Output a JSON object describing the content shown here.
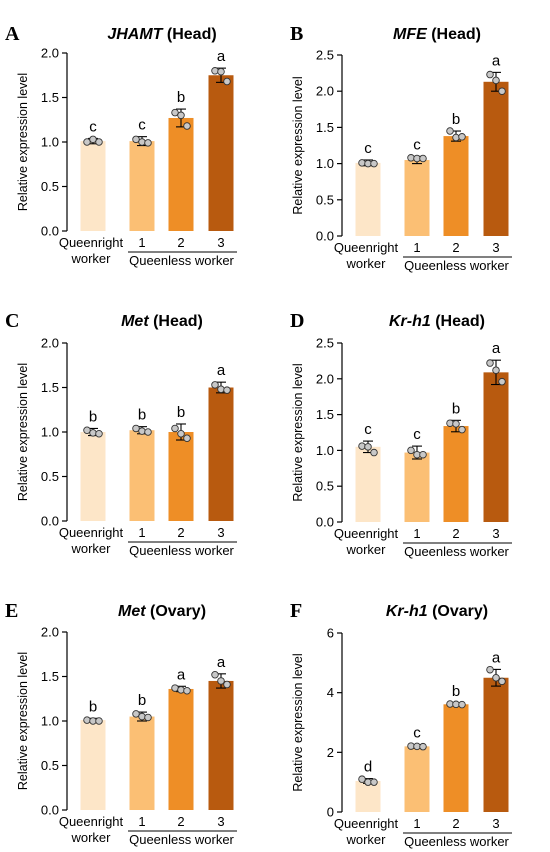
{
  "colors": [
    "#fde6c8",
    "#fbbf74",
    "#ee8e26",
    "#b85a0f"
  ],
  "xlabels": {
    "queenright_line1": "Queenright",
    "queenright_line2": "worker",
    "group_ticks": [
      "1",
      "2",
      "3"
    ],
    "queenless": "Queenless worker"
  },
  "chart_data": [
    {
      "panel": "A",
      "type": "bar",
      "title_gene": "JHAMT",
      "title_tissue": "(Head)",
      "ylabel": "Relative expression level",
      "ylim": [
        0,
        2.0
      ],
      "yticks": [
        "0.0",
        "0.5",
        "1.0",
        "1.5",
        "2.0"
      ],
      "ytick_values": [
        0,
        0.5,
        1.0,
        1.5,
        2.0
      ],
      "values": [
        1.01,
        1.01,
        1.27,
        1.75
      ],
      "errors": [
        0.03,
        0.05,
        0.1,
        0.08
      ],
      "letters": [
        "c",
        "c",
        "b",
        "a"
      ],
      "points": [
        [
          1.0,
          1.03,
          1.0
        ],
        [
          1.03,
          1.0,
          0.99
        ],
        [
          1.33,
          1.3,
          1.18
        ],
        [
          1.8,
          1.79,
          1.68
        ]
      ]
    },
    {
      "panel": "B",
      "type": "bar",
      "title_gene": "MFE",
      "title_tissue": "(Head)",
      "ylabel": "Relative expression level",
      "ylim": [
        0,
        2.5
      ],
      "yticks": [
        "0.0",
        "0.5",
        "1.0",
        "1.5",
        "2.0",
        "2.5"
      ],
      "ytick_values": [
        0,
        0.5,
        1.0,
        1.5,
        2.0,
        2.5
      ],
      "values": [
        1.01,
        1.05,
        1.38,
        2.13
      ],
      "errors": [
        0.04,
        0.05,
        0.07,
        0.13
      ],
      "letters": [
        "c",
        "c",
        "b",
        "a"
      ],
      "points": [
        [
          1.01,
          1.0,
          1.0
        ],
        [
          1.08,
          1.07,
          1.07
        ],
        [
          1.45,
          1.36,
          1.37
        ],
        [
          2.23,
          2.15,
          2.0
        ]
      ]
    },
    {
      "panel": "C",
      "type": "bar",
      "title_gene": "Met",
      "title_tissue": "(Head)",
      "ylabel": "Relative expression level",
      "ylim": [
        0,
        2.0
      ],
      "yticks": [
        "0.0",
        "0.5",
        "1.0",
        "1.5",
        "2.0"
      ],
      "ytick_values": [
        0,
        0.5,
        1.0,
        1.5,
        2.0
      ],
      "values": [
        1.0,
        1.02,
        1.0,
        1.5
      ],
      "errors": [
        0.04,
        0.04,
        0.09,
        0.06
      ],
      "letters": [
        "b",
        "b",
        "b",
        "a"
      ],
      "points": [
        [
          1.02,
          0.99,
          0.98
        ],
        [
          1.04,
          1.01,
          1.0
        ],
        [
          1.04,
          0.98,
          0.93
        ],
        [
          1.53,
          1.48,
          1.47
        ]
      ]
    },
    {
      "panel": "D",
      "type": "bar",
      "title_gene": "Kr-h1",
      "title_tissue": "(Head)",
      "ylabel": "Relative expression level",
      "ylim": [
        0,
        2.5
      ],
      "yticks": [
        "0.0",
        "0.5",
        "1.0",
        "1.5",
        "2.0",
        "2.5"
      ],
      "ytick_values": [
        0,
        0.5,
        1.0,
        1.5,
        2.0,
        2.5
      ],
      "values": [
        1.05,
        0.97,
        1.34,
        2.09
      ],
      "errors": [
        0.08,
        0.09,
        0.08,
        0.17
      ],
      "letters": [
        "c",
        "c",
        "b",
        "a"
      ],
      "points": [
        [
          1.06,
          1.05,
          0.97
        ],
        [
          1.0,
          0.94,
          0.94
        ],
        [
          1.38,
          1.37,
          1.29
        ],
        [
          2.22,
          2.12,
          1.96
        ]
      ]
    },
    {
      "panel": "E",
      "type": "bar",
      "title_gene": "Met",
      "title_tissue": "(Ovary)",
      "ylabel": "Relative expression level",
      "ylim": [
        0,
        2.0
      ],
      "yticks": [
        "0.0",
        "0.5",
        "1.0",
        "1.5",
        "2.0"
      ],
      "ytick_values": [
        0,
        0.5,
        1.0,
        1.5,
        2.0
      ],
      "values": [
        1.01,
        1.05,
        1.36,
        1.45
      ],
      "errors": [
        0.02,
        0.05,
        0.03,
        0.08
      ],
      "letters": [
        "b",
        "b",
        "a",
        "a"
      ],
      "points": [
        [
          1.01,
          1.0,
          1.0
        ],
        [
          1.08,
          1.05,
          1.04
        ],
        [
          1.37,
          1.35,
          1.34
        ],
        [
          1.52,
          1.45,
          1.41
        ]
      ]
    },
    {
      "panel": "F",
      "type": "bar",
      "title_gene": "Kr-h1",
      "title_tissue": "(Ovary)",
      "ylabel": "Relative expression level",
      "ylim": [
        0,
        6
      ],
      "yticks": [
        "0",
        "2",
        "4",
        "6"
      ],
      "ytick_values": [
        0,
        2,
        4,
        6
      ],
      "values": [
        1.04,
        2.2,
        3.61,
        4.5
      ],
      "errors": [
        0.08,
        0.06,
        0.04,
        0.28
      ],
      "letters": [
        "d",
        "c",
        "b",
        "a"
      ],
      "points": [
        [
          1.1,
          1.0,
          1.0
        ],
        [
          2.21,
          2.2,
          2.19
        ],
        [
          3.62,
          3.61,
          3.6
        ],
        [
          4.77,
          4.5,
          4.38
        ]
      ]
    }
  ]
}
